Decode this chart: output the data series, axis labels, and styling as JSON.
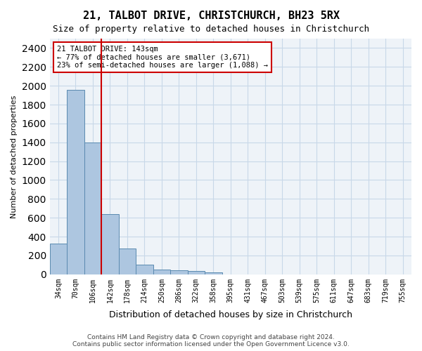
{
  "title": "21, TALBOT DRIVE, CHRISTCHURCH, BH23 5RX",
  "subtitle": "Size of property relative to detached houses in Christchurch",
  "xlabel": "Distribution of detached houses by size in Christchurch",
  "ylabel": "Number of detached properties",
  "bar_values": [
    325,
    1960,
    1400,
    640,
    275,
    105,
    50,
    40,
    35,
    22,
    0,
    0,
    0,
    0,
    0,
    0,
    0,
    0,
    0,
    0,
    0
  ],
  "categories": [
    "34sqm",
    "70sqm",
    "106sqm",
    "142sqm",
    "178sqm",
    "214sqm",
    "250sqm",
    "286sqm",
    "322sqm",
    "358sqm",
    "395sqm",
    "431sqm",
    "467sqm",
    "503sqm",
    "539sqm",
    "575sqm",
    "611sqm",
    "647sqm",
    "683sqm",
    "719sqm",
    "755sqm"
  ],
  "bar_color": "#adc6e0",
  "bar_edge_color": "#5a8ab0",
  "vline_color": "#cc0000",
  "annotation_text": "21 TALBOT DRIVE: 143sqm\n← 77% of detached houses are smaller (3,671)\n23% of semi-detached houses are larger (1,088) →",
  "annotation_box_color": "#cc0000",
  "ylim": [
    0,
    2500
  ],
  "yticks": [
    0,
    200,
    400,
    600,
    800,
    1000,
    1200,
    1400,
    1600,
    1800,
    2000,
    2200,
    2400
  ],
  "grid_color": "#c8d8e8",
  "background_color": "#eef3f8",
  "footer_text": "Contains HM Land Registry data © Crown copyright and database right 2024.\nContains public sector information licensed under the Open Government Licence v3.0.",
  "fig_width": 6.0,
  "fig_height": 5.0
}
